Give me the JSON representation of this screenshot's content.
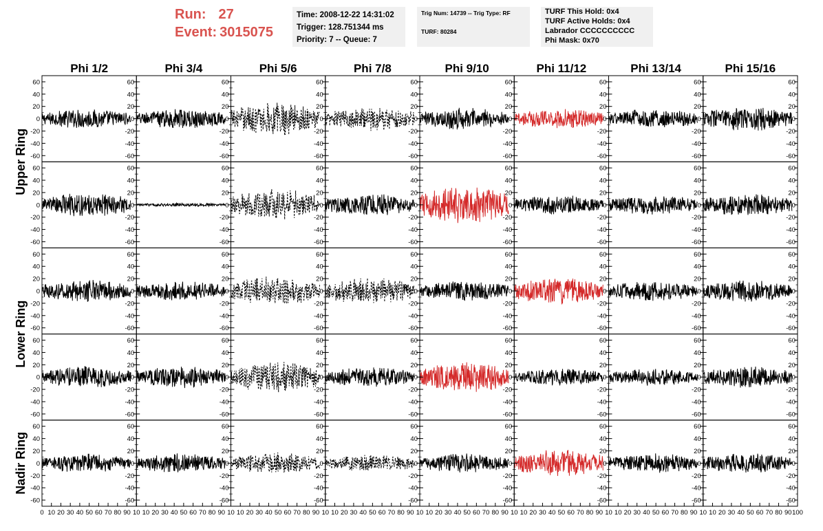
{
  "run_info": {
    "run_label": "Run:",
    "run_value": "27",
    "event_label": "Event:",
    "event_value": "3015075",
    "color": "#d9534f"
  },
  "info_box_1": {
    "time": "Time: 2008-12-22 14:31:02",
    "trigger": "Trigger: 128.751344 ms",
    "priority": "Priority: 7 -- Queue: 7"
  },
  "info_box_2": {
    "trig": "Trig Num: 14739 -- Trig Type: RF",
    "turf": "TURF: 80284"
  },
  "info_box_3": {
    "this_hold": "TURF This Hold: 0x4",
    "active_holds": "TURF Active Holds: 0x4",
    "labrador": "Labrador CCCCCCCCCC",
    "phi_mask": "Phi Mask: 0x70"
  },
  "colors": {
    "normal": "#000000",
    "triggered": "#d42a2a",
    "panel_bg": "#f0f0f0"
  },
  "chart_data": {
    "type": "line",
    "columns": [
      "Phi 1/2",
      "Phi 3/4",
      "Phi 5/6",
      "Phi 7/8",
      "Phi 9/10",
      "Phi 11/12",
      "Phi 13/14",
      "Phi 15/16"
    ],
    "ring_labels": [
      "Upper Ring",
      "Lower Ring",
      "Nadir Ring"
    ],
    "rows": 5,
    "ring_row_spans": [
      [
        0,
        1
      ],
      [
        2,
        3
      ],
      [
        4,
        4
      ]
    ],
    "ylim": [
      -70,
      70
    ],
    "yticks": [
      -60,
      -40,
      -20,
      0,
      20,
      40,
      60
    ],
    "xlim": [
      0,
      100
    ],
    "xticks": [
      0,
      10,
      20,
      30,
      40,
      50,
      60,
      70,
      80,
      90,
      100
    ],
    "x_tick_labels": [
      "10",
      "20",
      "30",
      "40",
      "50",
      "60",
      "70",
      "80",
      "90"
    ],
    "x_tick_label_start": "0",
    "x_tick_label_end_short": "10",
    "x_tick_label_end_full": "100",
    "samples_per_trace": 260,
    "x_start": 0,
    "x_end": 94,
    "panels": [
      {
        "row": 0,
        "col": 0,
        "amp": 16,
        "style": "solid",
        "color": "normal"
      },
      {
        "row": 0,
        "col": 1,
        "amp": 16,
        "style": "solid",
        "color": "normal"
      },
      {
        "row": 0,
        "col": 2,
        "amp": 28,
        "style": "dashed",
        "color": "normal"
      },
      {
        "row": 0,
        "col": 3,
        "amp": 20,
        "style": "dashed",
        "color": "normal"
      },
      {
        "row": 0,
        "col": 4,
        "amp": 18,
        "style": "solid",
        "color": "normal"
      },
      {
        "row": 0,
        "col": 5,
        "amp": 16,
        "style": "solid",
        "color": "triggered"
      },
      {
        "row": 0,
        "col": 6,
        "amp": 16,
        "style": "solid",
        "color": "normal"
      },
      {
        "row": 0,
        "col": 7,
        "amp": 20,
        "style": "solid",
        "color": "normal"
      },
      {
        "row": 1,
        "col": 0,
        "amp": 20,
        "style": "solid",
        "color": "normal"
      },
      {
        "row": 1,
        "col": 1,
        "amp": 3,
        "style": "solid",
        "color": "normal"
      },
      {
        "row": 1,
        "col": 2,
        "amp": 26,
        "style": "dashed",
        "color": "normal"
      },
      {
        "row": 1,
        "col": 3,
        "amp": 18,
        "style": "solid",
        "color": "normal"
      },
      {
        "row": 1,
        "col": 4,
        "amp": 30,
        "style": "solid",
        "color": "triggered"
      },
      {
        "row": 1,
        "col": 5,
        "amp": 16,
        "style": "solid",
        "color": "normal"
      },
      {
        "row": 1,
        "col": 6,
        "amp": 16,
        "style": "solid",
        "color": "normal"
      },
      {
        "row": 1,
        "col": 7,
        "amp": 18,
        "style": "solid",
        "color": "normal"
      },
      {
        "row": 2,
        "col": 0,
        "amp": 18,
        "style": "solid",
        "color": "normal"
      },
      {
        "row": 2,
        "col": 1,
        "amp": 16,
        "style": "solid",
        "color": "normal"
      },
      {
        "row": 2,
        "col": 2,
        "amp": 24,
        "style": "dashed",
        "color": "normal"
      },
      {
        "row": 2,
        "col": 3,
        "amp": 22,
        "style": "dashed",
        "color": "normal"
      },
      {
        "row": 2,
        "col": 4,
        "amp": 16,
        "style": "solid",
        "color": "normal"
      },
      {
        "row": 2,
        "col": 5,
        "amp": 22,
        "style": "solid",
        "color": "triggered"
      },
      {
        "row": 2,
        "col": 6,
        "amp": 16,
        "style": "solid",
        "color": "normal"
      },
      {
        "row": 2,
        "col": 7,
        "amp": 18,
        "style": "solid",
        "color": "normal"
      },
      {
        "row": 3,
        "col": 0,
        "amp": 18,
        "style": "solid",
        "color": "normal"
      },
      {
        "row": 3,
        "col": 1,
        "amp": 18,
        "style": "solid",
        "color": "normal"
      },
      {
        "row": 3,
        "col": 2,
        "amp": 26,
        "style": "dashed",
        "color": "normal"
      },
      {
        "row": 3,
        "col": 3,
        "amp": 16,
        "style": "solid",
        "color": "normal"
      },
      {
        "row": 3,
        "col": 4,
        "amp": 26,
        "style": "solid",
        "color": "triggered"
      },
      {
        "row": 3,
        "col": 5,
        "amp": 14,
        "style": "solid",
        "color": "normal"
      },
      {
        "row": 3,
        "col": 6,
        "amp": 14,
        "style": "solid",
        "color": "normal"
      },
      {
        "row": 3,
        "col": 7,
        "amp": 18,
        "style": "solid",
        "color": "normal"
      },
      {
        "row": 4,
        "col": 0,
        "amp": 16,
        "style": "solid",
        "color": "normal"
      },
      {
        "row": 4,
        "col": 1,
        "amp": 16,
        "style": "solid",
        "color": "normal"
      },
      {
        "row": 4,
        "col": 2,
        "amp": 18,
        "style": "dashed",
        "color": "normal"
      },
      {
        "row": 4,
        "col": 3,
        "amp": 14,
        "style": "dashed",
        "color": "normal"
      },
      {
        "row": 4,
        "col": 4,
        "amp": 16,
        "style": "solid",
        "color": "normal"
      },
      {
        "row": 4,
        "col": 5,
        "amp": 22,
        "style": "solid",
        "color": "triggered"
      },
      {
        "row": 4,
        "col": 6,
        "amp": 16,
        "style": "solid",
        "color": "normal"
      },
      {
        "row": 4,
        "col": 7,
        "amp": 16,
        "style": "solid",
        "color": "normal"
      }
    ]
  }
}
